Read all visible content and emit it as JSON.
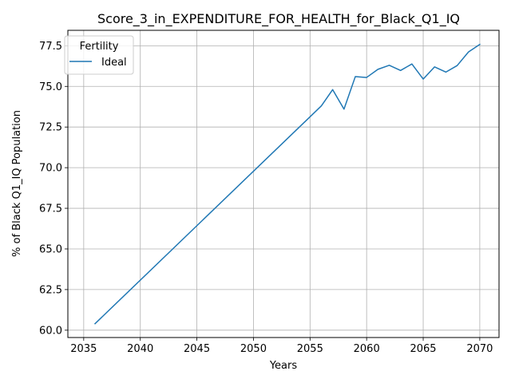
{
  "chart_data": {
    "type": "line",
    "title": "Score_3_in_EXPENDITURE_FOR_HEALTH_for_Black_Q1_IQ",
    "xlabel": "Years",
    "ylabel": "% of Black Q1_IQ Population",
    "xlim": [
      2033.6,
      2071.7
    ],
    "ylim": [
      59.55,
      78.45
    ],
    "xticks": [
      2035,
      2040,
      2045,
      2050,
      2055,
      2060,
      2065,
      2070
    ],
    "yticks": [
      60.0,
      62.5,
      65.0,
      67.5,
      70.0,
      72.5,
      75.0,
      77.5
    ],
    "xtick_labels": [
      "2035",
      "2040",
      "2045",
      "2050",
      "2055",
      "2060",
      "2065",
      "2070"
    ],
    "ytick_labels": [
      "60.0",
      "62.5",
      "65.0",
      "67.5",
      "70.0",
      "72.5",
      "75.0",
      "77.5"
    ],
    "grid": true,
    "legend": {
      "title": "Fertility",
      "placement": "top-left"
    },
    "series": [
      {
        "name": "Ideal",
        "color": "#1f77b4",
        "x": [
          2036,
          2056,
          2057,
          2058,
          2059,
          2060,
          2061,
          2062,
          2063,
          2064,
          2065,
          2066,
          2067,
          2068,
          2069,
          2070
        ],
        "y": [
          60.4,
          73.8,
          74.8,
          73.6,
          75.6,
          75.55,
          76.05,
          76.3,
          75.98,
          76.38,
          75.45,
          76.2,
          75.88,
          76.28,
          77.12,
          77.58
        ]
      }
    ]
  }
}
